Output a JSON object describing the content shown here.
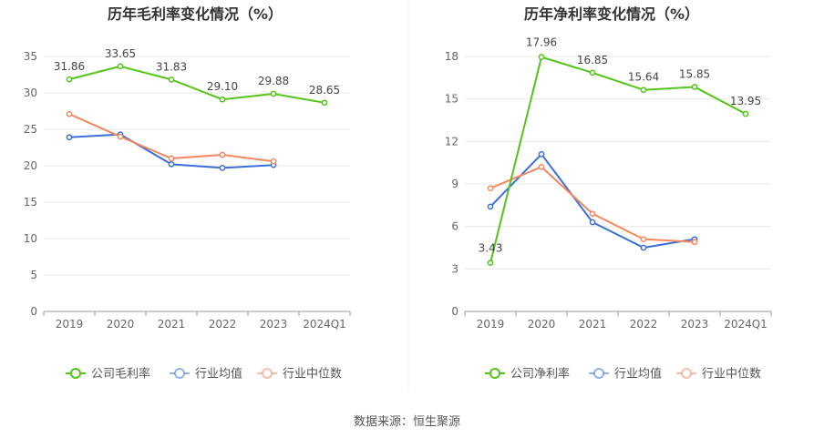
{
  "colors": {
    "company": "#52c41a",
    "industry_avg": "#3b6fd8",
    "industry_median": "#f5875f",
    "grid": "#e8e8e8",
    "axis": "#999999",
    "text": "#666666",
    "title": "#333333"
  },
  "source_label": "数据来源：恒生聚源",
  "chart_data": [
    {
      "type": "line",
      "title": "历年毛利率变化情况（%）",
      "categories": [
        "2019",
        "2020",
        "2021",
        "2022",
        "2023",
        "2024Q1"
      ],
      "ylim": [
        0,
        35
      ],
      "yticks": [
        0,
        5,
        10,
        15,
        20,
        25,
        30,
        35
      ],
      "series": [
        {
          "name": "公司毛利率",
          "key": "company",
          "values": [
            31.86,
            33.65,
            31.83,
            29.1,
            29.88,
            28.65
          ],
          "labels": [
            "31.86",
            "33.65",
            "31.83",
            "29.10",
            "29.88",
            "28.65"
          ]
        },
        {
          "name": "行业均值",
          "key": "industry_avg",
          "values": [
            23.9,
            24.3,
            20.2,
            19.7,
            20.1,
            null
          ]
        },
        {
          "name": "行业中位数",
          "key": "industry_median",
          "values": [
            27.1,
            24.0,
            21.0,
            21.5,
            20.6,
            null
          ]
        }
      ]
    },
    {
      "type": "line",
      "title": "历年净利率变化情况（%）",
      "categories": [
        "2019",
        "2020",
        "2021",
        "2022",
        "2023",
        "2024Q1"
      ],
      "ylim": [
        0,
        18
      ],
      "yticks": [
        0,
        3,
        6,
        9,
        12,
        15,
        18
      ],
      "series": [
        {
          "name": "公司净利率",
          "key": "company",
          "values": [
            3.43,
            17.96,
            16.85,
            15.64,
            15.85,
            13.95
          ],
          "labels": [
            "3.43",
            "17.96",
            "16.85",
            "15.64",
            "15.85",
            "13.95"
          ]
        },
        {
          "name": "行业均值",
          "key": "industry_avg",
          "values": [
            7.4,
            11.1,
            6.3,
            4.5,
            5.1,
            null
          ]
        },
        {
          "name": "行业中位数",
          "key": "industry_median",
          "values": [
            8.7,
            10.2,
            6.9,
            5.1,
            4.9,
            null
          ]
        }
      ]
    }
  ]
}
